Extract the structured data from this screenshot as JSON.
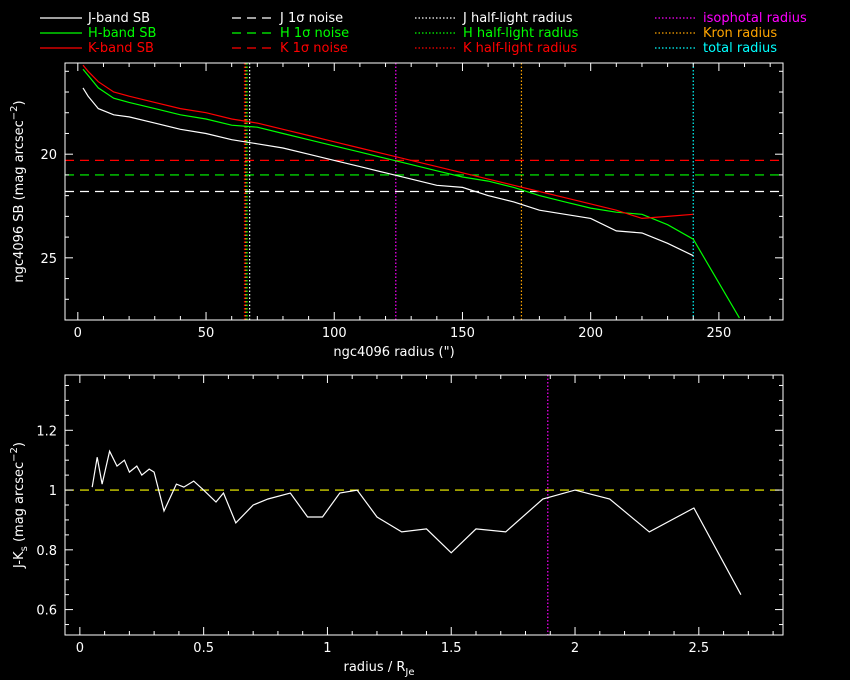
{
  "legend": [
    {
      "label": "J-band SB",
      "color": "#ffffff",
      "dash": "solid"
    },
    {
      "label": "H-band SB",
      "color": "#00ff00",
      "dash": "solid"
    },
    {
      "label": "K-band SB",
      "color": "#ff0000",
      "dash": "solid"
    },
    {
      "label": "J 1σ noise",
      "color": "#ffffff",
      "dash": "dashed"
    },
    {
      "label": "H 1σ noise",
      "color": "#00ff00",
      "dash": "dashed"
    },
    {
      "label": "K 1σ noise",
      "color": "#ff0000",
      "dash": "dashed"
    },
    {
      "label": "J half-light radius",
      "color": "#ffffff",
      "dash": "dotted"
    },
    {
      "label": "H half-light radius",
      "color": "#00ff00",
      "dash": "dotted"
    },
    {
      "label": "K half-light radius",
      "color": "#ff0000",
      "dash": "dotted"
    },
    {
      "label": "isophotal radius",
      "color": "#ff00ff",
      "dash": "dotted"
    },
    {
      "label": "Kron radius",
      "color": "#ffa500",
      "dash": "dotted"
    },
    {
      "label": "total radius",
      "color": "#00ffff",
      "dash": "dotted"
    }
  ],
  "chart_data": [
    {
      "type": "line",
      "xlabel": "ngc4096 radius (\")",
      "ylabel": "ngc4096 SB (mag arcsec",
      "ylabel_sup": "−2",
      "ylabel_close": ")",
      "xlim": [
        -5,
        275
      ],
      "ylim": [
        28.0,
        15.6
      ],
      "xticks": [
        "0",
        "50",
        "100",
        "150",
        "200",
        "250"
      ],
      "xtick_values": [
        0,
        50,
        100,
        150,
        200,
        250
      ],
      "yticks": [
        "20",
        "25"
      ],
      "ytick_values": [
        20,
        25
      ],
      "series": [
        {
          "name": "J-band SB",
          "color": "#ffffff",
          "x": [
            2,
            4,
            8,
            14,
            20,
            30,
            40,
            50,
            60,
            70,
            80,
            90,
            100,
            110,
            120,
            130,
            140,
            150,
            160,
            170,
            180,
            190,
            200,
            210,
            220,
            230,
            240
          ],
          "y": [
            16.8,
            17.2,
            17.8,
            18.1,
            18.2,
            18.5,
            18.8,
            19.0,
            19.3,
            19.5,
            19.7,
            20.0,
            20.3,
            20.6,
            20.9,
            21.2,
            21.5,
            21.6,
            22.0,
            22.3,
            22.7,
            22.9,
            23.1,
            23.7,
            23.8,
            24.3,
            24.9
          ]
        },
        {
          "name": "H-band SB",
          "color": "#00ff00",
          "x": [
            2,
            4,
            8,
            14,
            20,
            30,
            40,
            50,
            60,
            70,
            80,
            90,
            100,
            110,
            120,
            130,
            140,
            150,
            160,
            170,
            180,
            190,
            200,
            210,
            220,
            230,
            240,
            258
          ],
          "y": [
            15.9,
            16.2,
            16.8,
            17.3,
            17.5,
            17.8,
            18.1,
            18.3,
            18.6,
            18.7,
            19.0,
            19.3,
            19.6,
            19.9,
            20.2,
            20.5,
            20.8,
            21.1,
            21.3,
            21.6,
            22.0,
            22.3,
            22.6,
            22.8,
            22.9,
            23.4,
            24.1,
            27.9
          ]
        },
        {
          "name": "K-band SB",
          "color": "#ff0000",
          "x": [
            2,
            4,
            8,
            14,
            20,
            30,
            40,
            50,
            60,
            70,
            80,
            90,
            100,
            110,
            120,
            130,
            140,
            150,
            160,
            170,
            180,
            190,
            200,
            210,
            220,
            230,
            240
          ],
          "y": [
            15.7,
            16.0,
            16.5,
            17.0,
            17.2,
            17.5,
            17.8,
            18.0,
            18.3,
            18.5,
            18.8,
            19.1,
            19.4,
            19.7,
            20.0,
            20.3,
            20.6,
            20.9,
            21.2,
            21.5,
            21.8,
            22.1,
            22.4,
            22.7,
            23.1,
            23.0,
            22.9
          ]
        }
      ],
      "hlines": [
        {
          "name": "J 1σ noise",
          "color": "#ffffff",
          "y": 21.8
        },
        {
          "name": "H 1σ noise",
          "color": "#00ff00",
          "y": 21.0
        },
        {
          "name": "K 1σ noise",
          "color": "#ff0000",
          "y": 20.3
        }
      ],
      "vlines": [
        {
          "name": "J half-light radius",
          "color": "#ffffff",
          "x": 67
        },
        {
          "name": "H half-light radius",
          "color": "#00ff00",
          "x": 66
        },
        {
          "name": "K half-light radius",
          "color": "#ff0000",
          "x": 65
        },
        {
          "name": "Kron radius",
          "color": "#ffa500",
          "x": 65.5
        },
        {
          "name": "isophotal radius",
          "color": "#ff00ff",
          "x": 124
        },
        {
          "name": "Kron radius",
          "color": "#ffa500",
          "x": 173
        },
        {
          "name": "total radius",
          "color": "#00ffff",
          "x": 240
        }
      ]
    },
    {
      "type": "line",
      "xlabel": "radius / R",
      "xlabel_sub": "Je",
      "ylabel": "J-K",
      "ylabel_sub": "s",
      "ylabel_rest": " (mag arcsec",
      "ylabel_sup": "−2",
      "ylabel_close": ")",
      "xlim": [
        -0.06,
        2.84
      ],
      "ylim": [
        0.515,
        1.385
      ],
      "xticks": [
        "0",
        "0.5",
        "1",
        "1.5",
        "2",
        "2.5"
      ],
      "xtick_values": [
        0,
        0.5,
        1,
        1.5,
        2,
        2.5
      ],
      "yticks": [
        "0.6",
        "0.8",
        "1",
        "1.2"
      ],
      "ytick_values": [
        0.6,
        0.8,
        1.0,
        1.2
      ],
      "series": [
        {
          "name": "J-K",
          "color": "#ffffff",
          "x": [
            0.05,
            0.07,
            0.09,
            0.12,
            0.15,
            0.18,
            0.2,
            0.23,
            0.25,
            0.28,
            0.3,
            0.34,
            0.39,
            0.42,
            0.46,
            0.5,
            0.55,
            0.58,
            0.63,
            0.7,
            0.76,
            0.85,
            0.92,
            0.98,
            1.05,
            1.12,
            1.2,
            1.3,
            1.4,
            1.5,
            1.6,
            1.72,
            1.87,
            2.0,
            2.14,
            2.3,
            2.48,
            2.67
          ],
          "y": [
            1.01,
            1.11,
            1.02,
            1.13,
            1.08,
            1.1,
            1.06,
            1.08,
            1.05,
            1.07,
            1.06,
            0.93,
            1.02,
            1.01,
            1.03,
            1.0,
            0.96,
            0.99,
            0.89,
            0.95,
            0.97,
            0.99,
            0.91,
            0.91,
            0.99,
            1.0,
            0.91,
            0.86,
            0.87,
            0.79,
            0.87,
            0.86,
            0.97,
            1.0,
            0.97,
            0.86,
            0.94,
            0.65
          ]
        }
      ],
      "hlines": [
        {
          "name": "reference",
          "color": "#ffff00",
          "y": 1.0
        }
      ],
      "vlines": [
        {
          "name": "isophotal radius",
          "color": "#ff00ff",
          "x": 1.89
        }
      ]
    }
  ]
}
